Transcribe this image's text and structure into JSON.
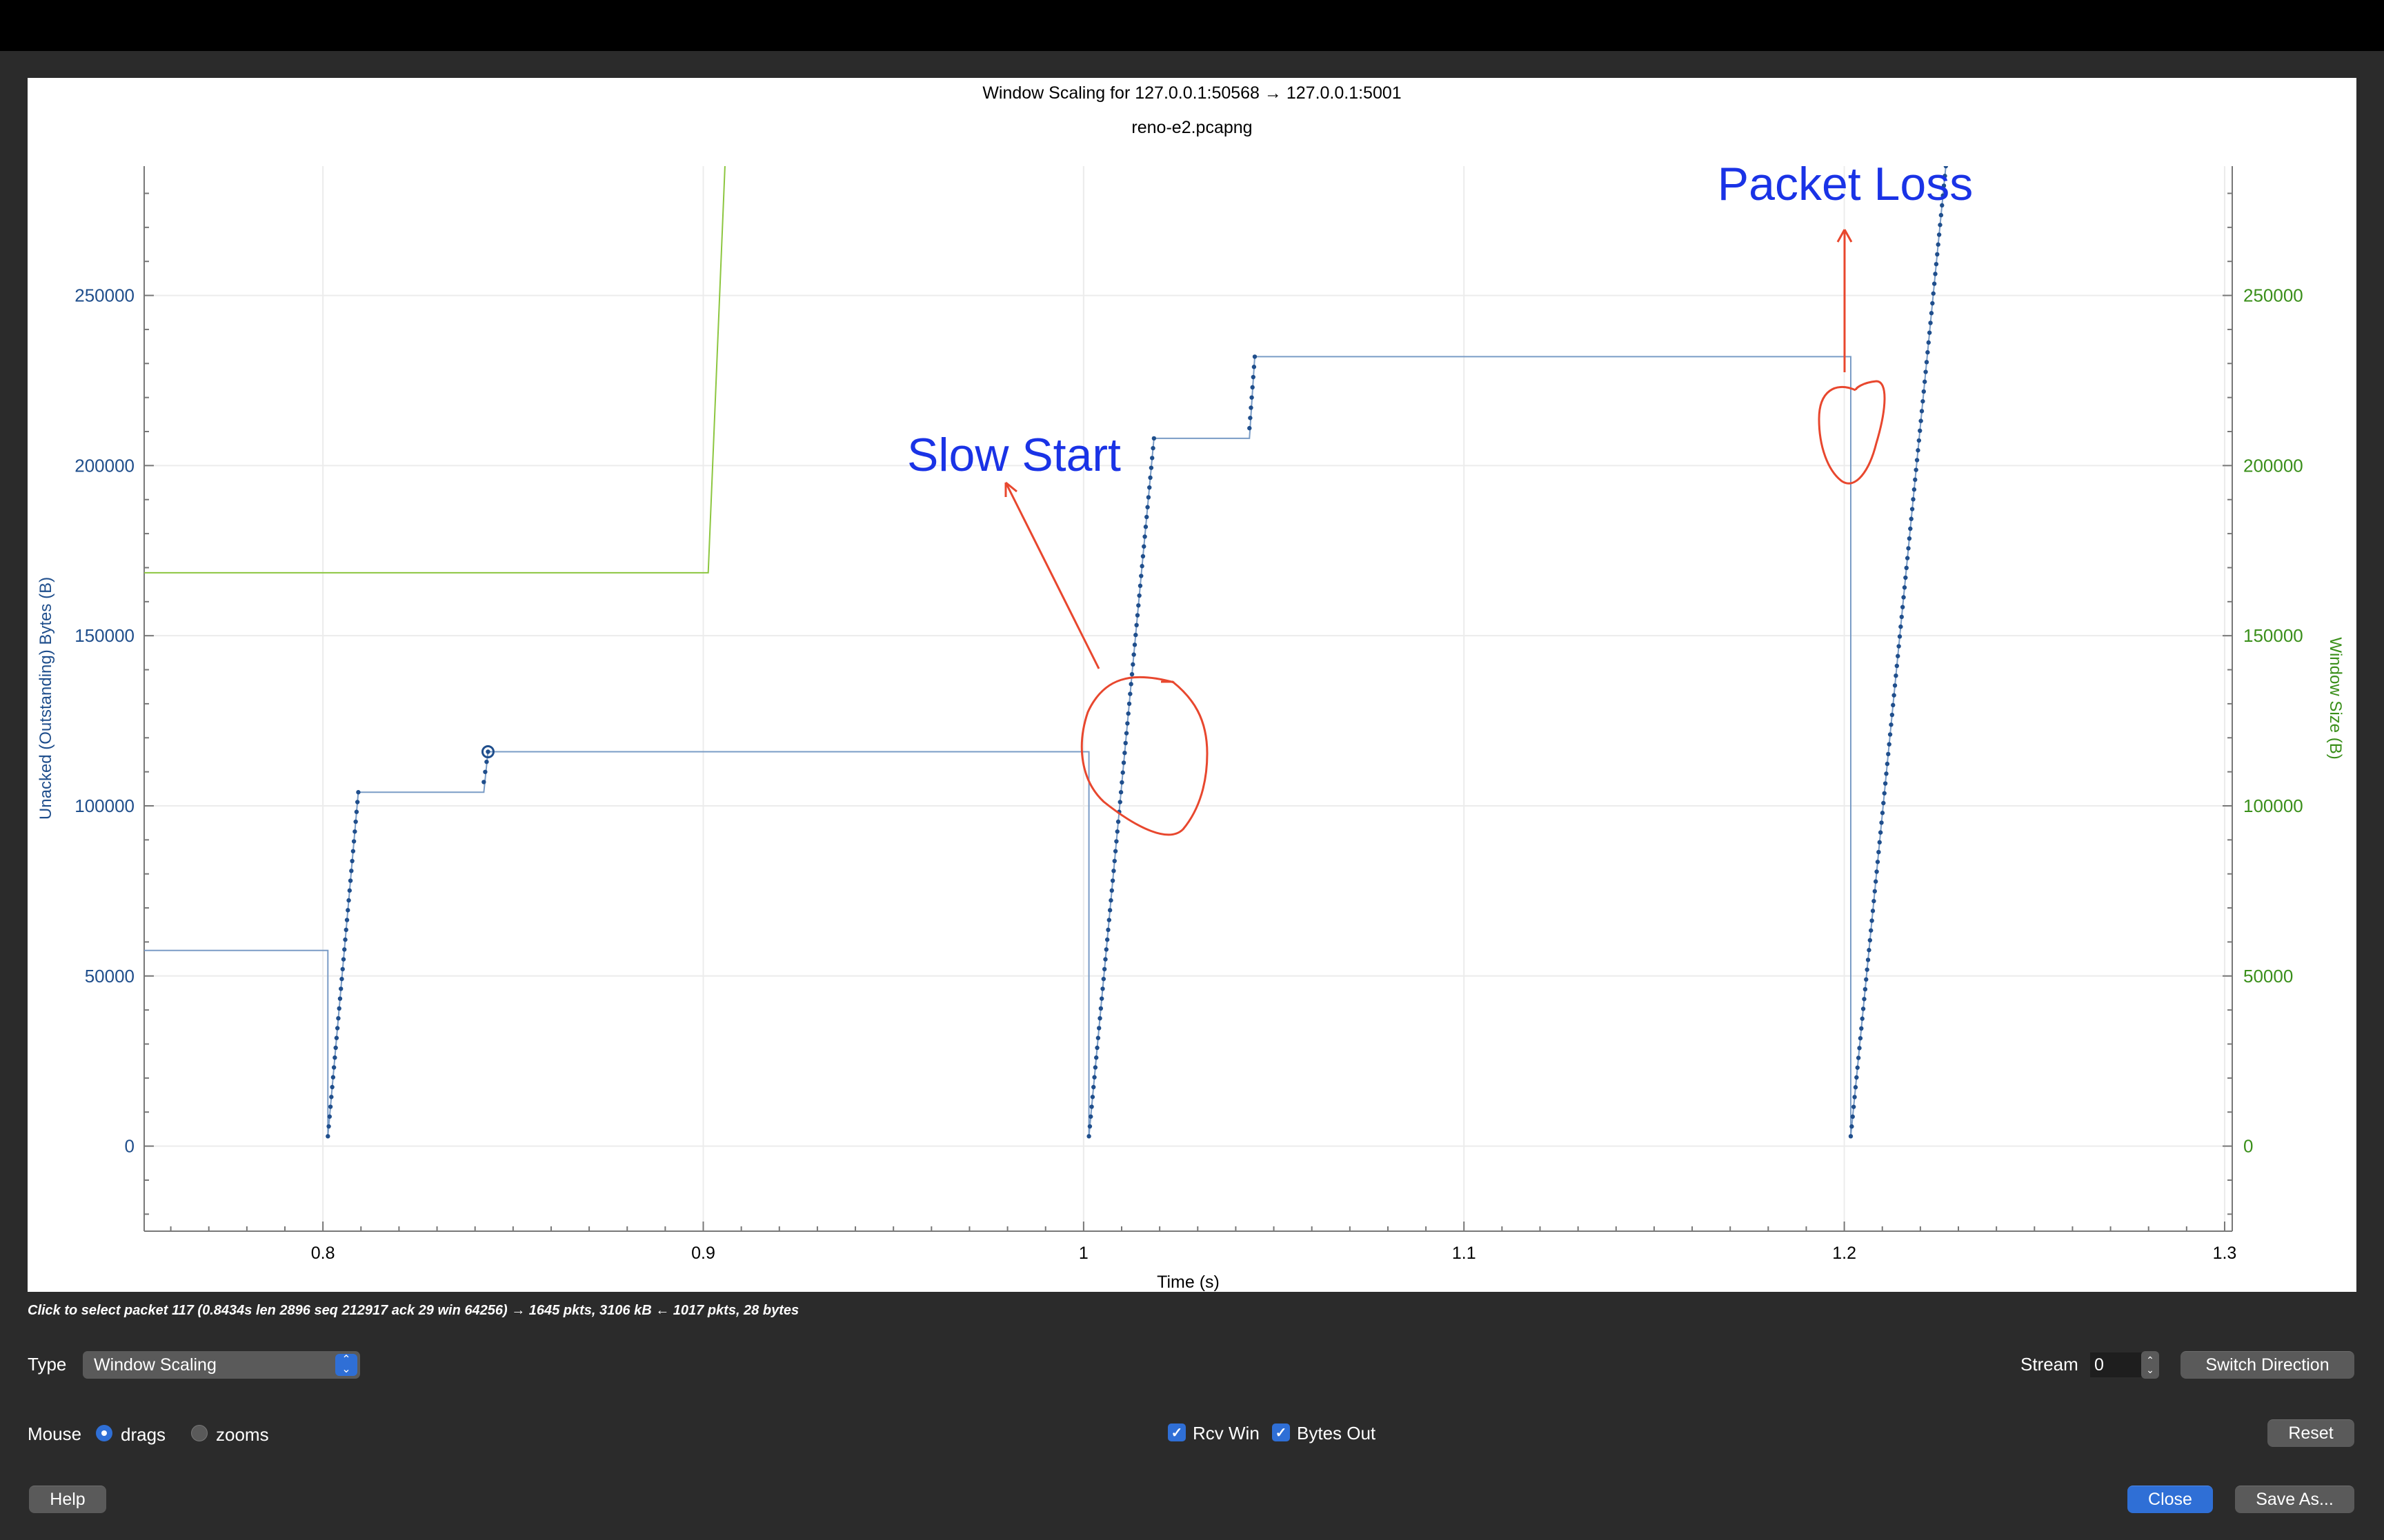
{
  "window": {
    "title": "Window Scaling for 127.0.0.1:50568 → 127.0.0.1:5001",
    "subtitle": "reno-e2.pcapng"
  },
  "colors": {
    "bytes_out": "#1f4e8c",
    "rcv_win": "#8cc63f",
    "annotation_text": "#1a33e6",
    "annotation_ink": "#e8472e",
    "accent": "#2f6fd6"
  },
  "chart_data": {
    "type": "scatter",
    "title": "Window Scaling for 127.0.0.1:50568 → 127.0.0.1:5001",
    "subtitle": "reno-e2.pcapng",
    "xlabel": "Time (s)",
    "ylabel": "Unacked (Outstanding) Bytes (B)",
    "y2label": "Window Size (B)",
    "xlim": [
      0.753,
      1.302
    ],
    "ylim": [
      -25000,
      288000
    ],
    "y2lim": [
      -25000,
      288000
    ],
    "xticks": [
      0.8,
      0.9,
      1,
      1.1,
      1.2,
      1.3
    ],
    "xtick_labels": [
      "0.8",
      "0.9",
      "1",
      "1.1",
      "1.2",
      "1.3"
    ],
    "yticks": [
      0,
      50000,
      100000,
      150000,
      200000,
      250000
    ],
    "ytick_labels": [
      "0",
      "50000",
      "100000",
      "150000",
      "200000",
      "250000"
    ],
    "y2ticks": [
      0,
      50000,
      100000,
      150000,
      200000,
      250000
    ],
    "y2tick_labels": [
      "0",
      "50000",
      "100000",
      "150000",
      "200000",
      "250000"
    ],
    "grid": true,
    "series": [
      {
        "name": "Bytes Out",
        "kind": "dotted-ramps-with-step",
        "ramps": [
          {
            "t0": 0.8013,
            "t1": 0.8093,
            "y0": 2896,
            "y1": 104000,
            "n": 36
          },
          {
            "t0": 0.8423,
            "t1": 0.8434,
            "y0": 107000,
            "y1": 115900,
            "n": 4
          },
          {
            "t0": 1.0014,
            "t1": 1.0185,
            "y0": 2896,
            "y1": 208000,
            "n": 72
          },
          {
            "t0": 1.0436,
            "t1": 1.045,
            "y0": 211000,
            "y1": 232000,
            "n": 8
          },
          {
            "t0": 1.2017,
            "t1": 1.2267,
            "y0": 2896,
            "y1": 288000,
            "n": 100
          }
        ],
        "step_line": [
          [
            0.753,
            57500
          ],
          [
            0.8013,
            57500
          ],
          [
            0.8013,
            2896
          ],
          [
            0.8093,
            104000
          ],
          [
            0.8423,
            104000
          ],
          [
            0.8434,
            115900
          ],
          [
            1.0014,
            115900
          ],
          [
            1.0014,
            2896
          ],
          [
            1.0185,
            208000
          ],
          [
            1.0436,
            208000
          ],
          [
            1.045,
            232000
          ],
          [
            1.2017,
            232000
          ],
          [
            1.2017,
            2896
          ],
          [
            1.2267,
            288000
          ]
        ],
        "highlight_point": [
          0.8434,
          115900
        ]
      },
      {
        "name": "Rcv Win",
        "axis": "right",
        "line": [
          [
            0.753,
            168500
          ],
          [
            0.9013,
            168500
          ],
          [
            0.9057,
            288000
          ]
        ]
      }
    ],
    "annotations": [
      {
        "text": "Slow Start"
      },
      {
        "text": "Packet Loss"
      }
    ]
  },
  "status": {
    "text": "Click to select packet 117 (0.8434s len 2896 seq 212917 ack 29 win 64256) → 1645 pkts, 3106 kB ← 1017 pkts, 28 bytes"
  },
  "controls": {
    "type_label": "Type",
    "type_value": "Window Scaling",
    "stream_label": "Stream",
    "stream_value": "0",
    "switch_direction": "Switch Direction",
    "mouse_label": "Mouse",
    "mouse_drags": "drags",
    "mouse_zooms": "zooms",
    "rcv_win": "Rcv Win",
    "bytes_out": "Bytes Out",
    "reset": "Reset",
    "help": "Help",
    "close": "Close",
    "save_as": "Save As..."
  }
}
